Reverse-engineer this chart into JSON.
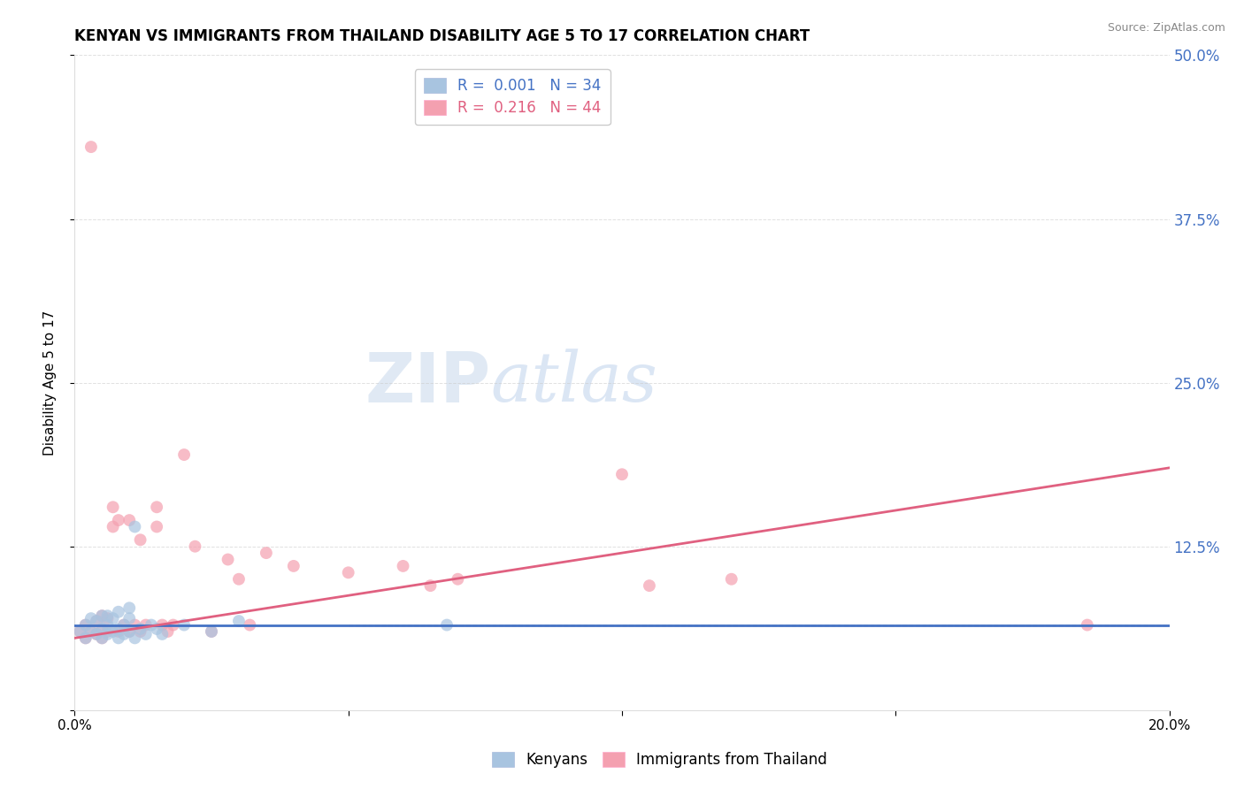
{
  "title": "KENYAN VS IMMIGRANTS FROM THAILAND DISABILITY AGE 5 TO 17 CORRELATION CHART",
  "source": "Source: ZipAtlas.com",
  "ylabel": "Disability Age 5 to 17",
  "xmin": 0.0,
  "xmax": 0.2,
  "ymin": 0.0,
  "ymax": 0.5,
  "yticks": [
    0.0,
    0.125,
    0.25,
    0.375,
    0.5
  ],
  "ytick_labels": [
    "",
    "12.5%",
    "25.0%",
    "37.5%",
    "50.0%"
  ],
  "xticks": [
    0.0,
    0.05,
    0.1,
    0.15,
    0.2
  ],
  "xtick_labels": [
    "0.0%",
    "",
    "",
    "",
    "20.0%"
  ],
  "legend_label1": "Kenyans",
  "legend_label2": "Immigrants from Thailand",
  "R1": "0.001",
  "N1": "34",
  "R2": "0.216",
  "N2": "44",
  "color_blue": "#A8C4E0",
  "color_pink": "#F4A0B0",
  "color_line_blue": "#4472C4",
  "color_line_pink": "#E06080",
  "color_axis_right": "#4472C4",
  "color_grid": "#CCCCCC",
  "dashed_line_y": 0.065,
  "kenyan_x": [
    0.001,
    0.002,
    0.002,
    0.003,
    0.003,
    0.004,
    0.004,
    0.005,
    0.005,
    0.005,
    0.006,
    0.006,
    0.006,
    0.007,
    0.007,
    0.008,
    0.008,
    0.008,
    0.009,
    0.009,
    0.01,
    0.01,
    0.01,
    0.011,
    0.011,
    0.012,
    0.013,
    0.014,
    0.015,
    0.016,
    0.02,
    0.025,
    0.03,
    0.068
  ],
  "kenyan_y": [
    0.06,
    0.055,
    0.065,
    0.06,
    0.07,
    0.058,
    0.068,
    0.055,
    0.062,
    0.072,
    0.058,
    0.065,
    0.072,
    0.06,
    0.07,
    0.055,
    0.062,
    0.075,
    0.058,
    0.065,
    0.06,
    0.07,
    0.078,
    0.055,
    0.14,
    0.062,
    0.058,
    0.065,
    0.062,
    0.058,
    0.065,
    0.06,
    0.068,
    0.065
  ],
  "thailand_x": [
    0.001,
    0.002,
    0.002,
    0.003,
    0.003,
    0.004,
    0.004,
    0.005,
    0.005,
    0.005,
    0.006,
    0.006,
    0.007,
    0.007,
    0.008,
    0.008,
    0.009,
    0.01,
    0.01,
    0.011,
    0.012,
    0.012,
    0.013,
    0.015,
    0.015,
    0.016,
    0.017,
    0.018,
    0.02,
    0.022,
    0.025,
    0.028,
    0.03,
    0.032,
    0.035,
    0.04,
    0.05,
    0.06,
    0.065,
    0.07,
    0.1,
    0.105,
    0.12,
    0.185
  ],
  "thailand_y": [
    0.06,
    0.055,
    0.065,
    0.06,
    0.43,
    0.058,
    0.068,
    0.055,
    0.062,
    0.072,
    0.06,
    0.07,
    0.14,
    0.155,
    0.06,
    0.145,
    0.065,
    0.06,
    0.145,
    0.065,
    0.06,
    0.13,
    0.065,
    0.14,
    0.155,
    0.065,
    0.06,
    0.065,
    0.195,
    0.125,
    0.06,
    0.115,
    0.1,
    0.065,
    0.12,
    0.11,
    0.105,
    0.11,
    0.095,
    0.1,
    0.18,
    0.095,
    0.1,
    0.065
  ]
}
